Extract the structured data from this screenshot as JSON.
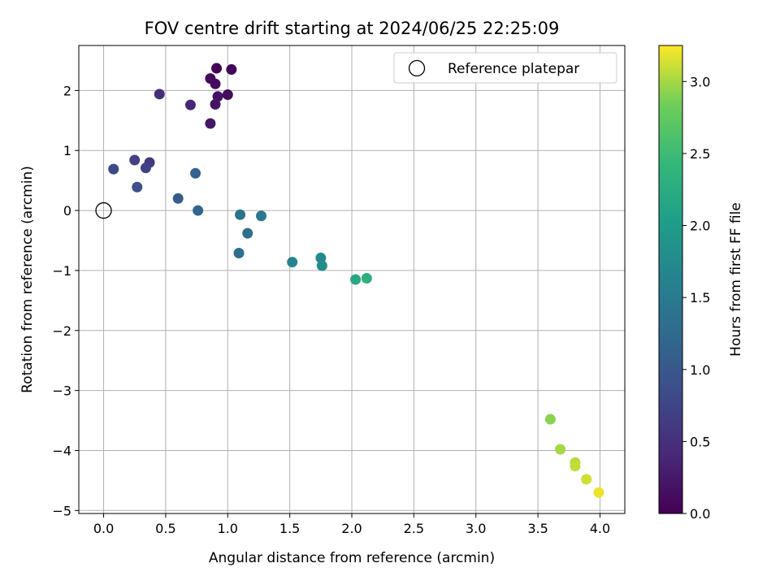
{
  "chart_data": {
    "type": "scatter",
    "title": "FOV centre drift starting at 2024/06/25 22:25:09",
    "xlabel": "Angular distance from reference (arcmin)",
    "ylabel": "Rotation from reference (arcmin)",
    "xlim": [
      -0.2,
      4.2
    ],
    "ylim": [
      -5.05,
      2.75
    ],
    "xticks": [
      0.0,
      0.5,
      1.0,
      1.5,
      2.0,
      2.5,
      3.0,
      3.5,
      4.0
    ],
    "xtick_labels": [
      "0.0",
      "0.5",
      "1.0",
      "1.5",
      "2.0",
      "2.5",
      "3.0",
      "3.5",
      "4.0"
    ],
    "yticks": [
      2,
      1,
      0,
      -1,
      -2,
      -3,
      -4,
      -5
    ],
    "ytick_labels": [
      "2",
      "1",
      "0",
      "−1",
      "−2",
      "−3",
      "−4",
      "−5"
    ],
    "grid": true,
    "legend": {
      "position": "top-right",
      "entries": [
        "Reference platepar"
      ]
    },
    "reference_point": {
      "x": 0.0,
      "y": 0.0
    },
    "colorbar": {
      "label": "Hours from first FF file",
      "range": [
        0.0,
        3.25
      ],
      "ticks": [
        0.0,
        0.5,
        1.0,
        1.5,
        2.0,
        2.5,
        3.0
      ],
      "tick_labels": [
        "0.0",
        "0.5",
        "1.0",
        "1.5",
        "2.0",
        "2.5",
        "3.0"
      ],
      "colormap": "viridis"
    },
    "points": [
      {
        "x": 0.91,
        "y": 2.37,
        "c": 0.02
      },
      {
        "x": 1.03,
        "y": 2.35,
        "c": 0.05
      },
      {
        "x": 0.86,
        "y": 2.2,
        "c": 0.08
      },
      {
        "x": 0.9,
        "y": 2.11,
        "c": 0.11
      },
      {
        "x": 1.0,
        "y": 1.93,
        "c": 0.1
      },
      {
        "x": 0.92,
        "y": 1.9,
        "c": 0.17
      },
      {
        "x": 0.9,
        "y": 1.77,
        "c": 0.2
      },
      {
        "x": 0.86,
        "y": 1.45,
        "c": 0.22
      },
      {
        "x": 0.7,
        "y": 1.76,
        "c": 0.4
      },
      {
        "x": 0.45,
        "y": 1.94,
        "c": 0.48
      },
      {
        "x": 0.37,
        "y": 0.8,
        "c": 0.62
      },
      {
        "x": 0.25,
        "y": 0.84,
        "c": 0.7
      },
      {
        "x": 0.34,
        "y": 0.71,
        "c": 0.72
      },
      {
        "x": 0.08,
        "y": 0.69,
        "c": 0.8
      },
      {
        "x": 0.27,
        "y": 0.39,
        "c": 0.88
      },
      {
        "x": 0.6,
        "y": 0.2,
        "c": 1.05
      },
      {
        "x": 0.74,
        "y": 0.62,
        "c": 1.12
      },
      {
        "x": 0.76,
        "y": 0.0,
        "c": 1.18
      },
      {
        "x": 1.1,
        "y": -0.07,
        "c": 1.4
      },
      {
        "x": 1.27,
        "y": -0.09,
        "c": 1.46
      },
      {
        "x": 1.16,
        "y": -0.38,
        "c": 1.32
      },
      {
        "x": 1.09,
        "y": -0.71,
        "c": 1.35
      },
      {
        "x": 1.52,
        "y": -0.86,
        "c": 1.65
      },
      {
        "x": 1.75,
        "y": -0.79,
        "c": 1.72
      },
      {
        "x": 1.76,
        "y": -0.92,
        "c": 1.78
      },
      {
        "x": 2.03,
        "y": -1.15,
        "c": 2.2
      },
      {
        "x": 2.12,
        "y": -1.13,
        "c": 2.3
      },
      {
        "x": 3.6,
        "y": -3.48,
        "c": 2.92
      },
      {
        "x": 3.68,
        "y": -3.98,
        "c": 3.0
      },
      {
        "x": 3.8,
        "y": -4.2,
        "c": 3.05
      },
      {
        "x": 3.8,
        "y": -4.26,
        "c": 3.08
      },
      {
        "x": 3.89,
        "y": -4.48,
        "c": 3.12
      },
      {
        "x": 3.99,
        "y": -4.7,
        "c": 3.2
      }
    ]
  }
}
